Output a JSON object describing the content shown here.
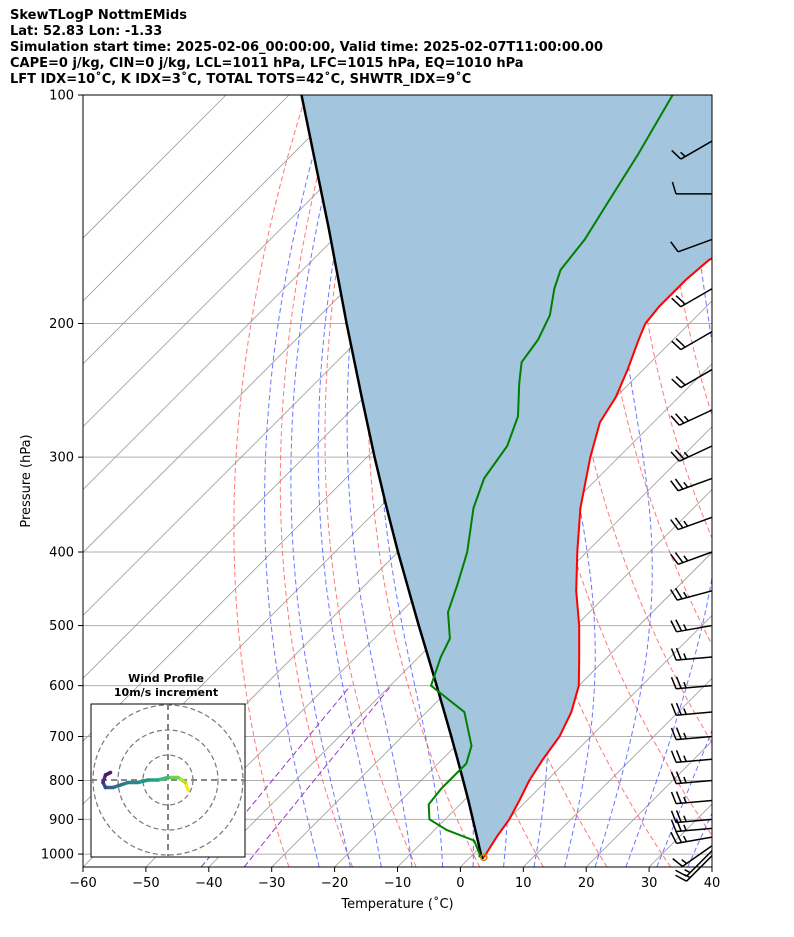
{
  "header": {
    "line1": "SkewTLogP NottmEMids",
    "line2": "Lat: 52.83   Lon: -1.33",
    "line3": "Simulation start time: 2025-02-06_00:00:00, Valid time: 2025-02-07T11:00:00.00",
    "line4": "CAPE=0 j/kg, CIN=0 j/kg, LCL=1011 hPa, LFC=1015 hPa, EQ=1010 hPa",
    "line5": "LFT IDX=10˚C, K IDX=3˚C, TOTAL TOTS=42˚C, SHWTR_IDX=9˚C"
  },
  "chart_data": {
    "type": "skew-t log-p",
    "xlabel": "Temperature (˚C)",
    "ylabel": "Pressure (hPa)",
    "xlim": [
      -60,
      40
    ],
    "ylim": [
      1040,
      100
    ],
    "x_ticks": [
      -60,
      -50,
      -40,
      -30,
      -20,
      -10,
      0,
      10,
      20,
      30,
      40
    ],
    "x_tick_labels": [
      "−60",
      "−50",
      "−40",
      "−30",
      "−20",
      "−10",
      "0",
      "10",
      "20",
      "30",
      "40"
    ],
    "y_ticks": [
      1000,
      900,
      800,
      700,
      600,
      500,
      400,
      300,
      200,
      100
    ],
    "y_tick_labels": [
      "1000",
      "900",
      "800",
      "700",
      "600",
      "500",
      "400",
      "300",
      "200",
      "100"
    ],
    "colors": {
      "temperature": "#ff0000",
      "dewpoint": "#008000",
      "parcel": "#000000",
      "fill": "#a3c5dd",
      "dry_adiabat": "#ff5555",
      "moist_adiabat": "#4455ff",
      "mixing_ratio": "#9933cc",
      "isotherm": "#999999",
      "grid": "#b0b0b0"
    },
    "temperature_profile": [
      {
        "p": 1010,
        "t": 2.2
      },
      {
        "p": 1000,
        "t": 2.0
      },
      {
        "p": 950,
        "t": 1.0
      },
      {
        "p": 900,
        "t": 0.2
      },
      {
        "p": 850,
        "t": -1.2
      },
      {
        "p": 800,
        "t": -2.8
      },
      {
        "p": 750,
        "t": -4.0
      },
      {
        "p": 700,
        "t": -5.0
      },
      {
        "p": 650,
        "t": -7.0
      },
      {
        "p": 600,
        "t": -10.0
      },
      {
        "p": 550,
        "t": -14.5
      },
      {
        "p": 500,
        "t": -19.5
      },
      {
        "p": 450,
        "t": -25.5
      },
      {
        "p": 400,
        "t": -31.5
      },
      {
        "p": 350,
        "t": -38.0
      },
      {
        "p": 300,
        "t": -44.5
      },
      {
        "p": 270,
        "t": -48.5
      },
      {
        "p": 250,
        "t": -50.0
      },
      {
        "p": 230,
        "t": -52.5
      },
      {
        "p": 210,
        "t": -55.5
      },
      {
        "p": 200,
        "t": -57.0
      },
      {
        "p": 190,
        "t": -57.5
      },
      {
        "p": 175,
        "t": -57.5
      },
      {
        "p": 165,
        "t": -57.0
      },
      {
        "p": 158,
        "t": -55.5
      },
      {
        "p": 150,
        "t": -56.5
      },
      {
        "p": 140,
        "t": -57.5
      },
      {
        "p": 125,
        "t": -58.0
      },
      {
        "p": 110,
        "t": -58.0
      },
      {
        "p": 100,
        "t": -59.0
      }
    ],
    "dewpoint_profile": [
      {
        "p": 1010,
        "t": 1.5
      },
      {
        "p": 1000,
        "t": 1.0
      },
      {
        "p": 960,
        "t": -2.0
      },
      {
        "p": 930,
        "t": -8.0
      },
      {
        "p": 900,
        "t": -12.5
      },
      {
        "p": 860,
        "t": -15.0
      },
      {
        "p": 820,
        "t": -15.5
      },
      {
        "p": 800,
        "t": -15.5
      },
      {
        "p": 760,
        "t": -15.5
      },
      {
        "p": 720,
        "t": -17.5
      },
      {
        "p": 650,
        "t": -24.0
      },
      {
        "p": 600,
        "t": -33.5
      },
      {
        "p": 550,
        "t": -36.5
      },
      {
        "p": 520,
        "t": -38.0
      },
      {
        "p": 480,
        "t": -42.5
      },
      {
        "p": 440,
        "t": -45.5
      },
      {
        "p": 400,
        "t": -49.0
      },
      {
        "p": 350,
        "t": -55.0
      },
      {
        "p": 320,
        "t": -58.0
      },
      {
        "p": 290,
        "t": -59.5
      },
      {
        "p": 265,
        "t": -62.5
      },
      {
        "p": 240,
        "t": -67.5
      },
      {
        "p": 225,
        "t": -70.5
      },
      {
        "p": 210,
        "t": -71.5
      },
      {
        "p": 195,
        "t": -73.5
      },
      {
        "p": 180,
        "t": -77.0
      },
      {
        "p": 170,
        "t": -79.0
      },
      {
        "p": 155,
        "t": -80.0
      },
      {
        "p": 140,
        "t": -82.0
      },
      {
        "p": 120,
        "t": -85.0
      },
      {
        "p": 100,
        "t": -89.0
      }
    ],
    "parcel_profile": [
      {
        "p": 1015,
        "t": 2.3
      },
      {
        "p": 1000,
        "t": 1.2
      },
      {
        "p": 950,
        "t": -2.1
      },
      {
        "p": 900,
        "t": -5.6
      },
      {
        "p": 850,
        "t": -9.3
      },
      {
        "p": 800,
        "t": -13.3
      },
      {
        "p": 750,
        "t": -17.6
      },
      {
        "p": 700,
        "t": -22.2
      },
      {
        "p": 650,
        "t": -27.2
      },
      {
        "p": 600,
        "t": -32.6
      },
      {
        "p": 550,
        "t": -38.5
      },
      {
        "p": 500,
        "t": -45.0
      },
      {
        "p": 450,
        "t": -52.1
      },
      {
        "p": 400,
        "t": -60.0
      },
      {
        "p": 350,
        "t": -68.8
      },
      {
        "p": 300,
        "t": -78.8
      },
      {
        "p": 250,
        "t": -90.4
      },
      {
        "p": 200,
        "t": -104.5
      },
      {
        "p": 150,
        "t": -122.4
      },
      {
        "p": 100,
        "t": -148.0
      }
    ],
    "wind_barbs": [
      {
        "p": 1005,
        "speed_kt": 15,
        "dir_deg": 225
      },
      {
        "p": 990,
        "speed_kt": 15,
        "dir_deg": 225
      },
      {
        "p": 975,
        "speed_kt": 15,
        "dir_deg": 235
      },
      {
        "p": 950,
        "speed_kt": 25,
        "dir_deg": 260
      },
      {
        "p": 925,
        "speed_kt": 25,
        "dir_deg": 265
      },
      {
        "p": 900,
        "speed_kt": 25,
        "dir_deg": 265
      },
      {
        "p": 850,
        "speed_kt": 25,
        "dir_deg": 265
      },
      {
        "p": 800,
        "speed_kt": 25,
        "dir_deg": 265
      },
      {
        "p": 750,
        "speed_kt": 25,
        "dir_deg": 265
      },
      {
        "p": 700,
        "speed_kt": 25,
        "dir_deg": 265
      },
      {
        "p": 650,
        "speed_kt": 25,
        "dir_deg": 265
      },
      {
        "p": 600,
        "speed_kt": 25,
        "dir_deg": 265
      },
      {
        "p": 550,
        "speed_kt": 25,
        "dir_deg": 265
      },
      {
        "p": 500,
        "speed_kt": 25,
        "dir_deg": 260
      },
      {
        "p": 450,
        "speed_kt": 25,
        "dir_deg": 255
      },
      {
        "p": 400,
        "speed_kt": 25,
        "dir_deg": 250
      },
      {
        "p": 360,
        "speed_kt": 25,
        "dir_deg": 250
      },
      {
        "p": 320,
        "speed_kt": 25,
        "dir_deg": 250
      },
      {
        "p": 290,
        "speed_kt": 25,
        "dir_deg": 245
      },
      {
        "p": 260,
        "speed_kt": 25,
        "dir_deg": 245
      },
      {
        "p": 230,
        "speed_kt": 20,
        "dir_deg": 240
      },
      {
        "p": 205,
        "speed_kt": 20,
        "dir_deg": 240
      },
      {
        "p": 180,
        "speed_kt": 20,
        "dir_deg": 240
      },
      {
        "p": 155,
        "speed_kt": 10,
        "dir_deg": 250
      },
      {
        "p": 135,
        "speed_kt": 10,
        "dir_deg": 270
      },
      {
        "p": 115,
        "speed_kt": 15,
        "dir_deg": 240
      }
    ],
    "inset": {
      "title": "Wind Profile",
      "subtitle": "10m/s increment",
      "rings_ms": [
        10,
        20,
        30
      ],
      "hodograph": [
        {
          "u": 8,
          "v": -4
        },
        {
          "u": 7,
          "v": -1
        },
        {
          "u": 4,
          "v": 1
        },
        {
          "u": 0,
          "v": 1
        },
        {
          "u": -4,
          "v": 0
        },
        {
          "u": -8,
          "v": 0
        },
        {
          "u": -12,
          "v": -1
        },
        {
          "u": -16,
          "v": -1
        },
        {
          "u": -19,
          "v": -2
        },
        {
          "u": -22,
          "v": -3
        },
        {
          "u": -25,
          "v": -3
        },
        {
          "u": -26,
          "v": -1
        },
        {
          "u": -25,
          "v": 2
        },
        {
          "u": -23,
          "v": 3
        }
      ]
    }
  }
}
